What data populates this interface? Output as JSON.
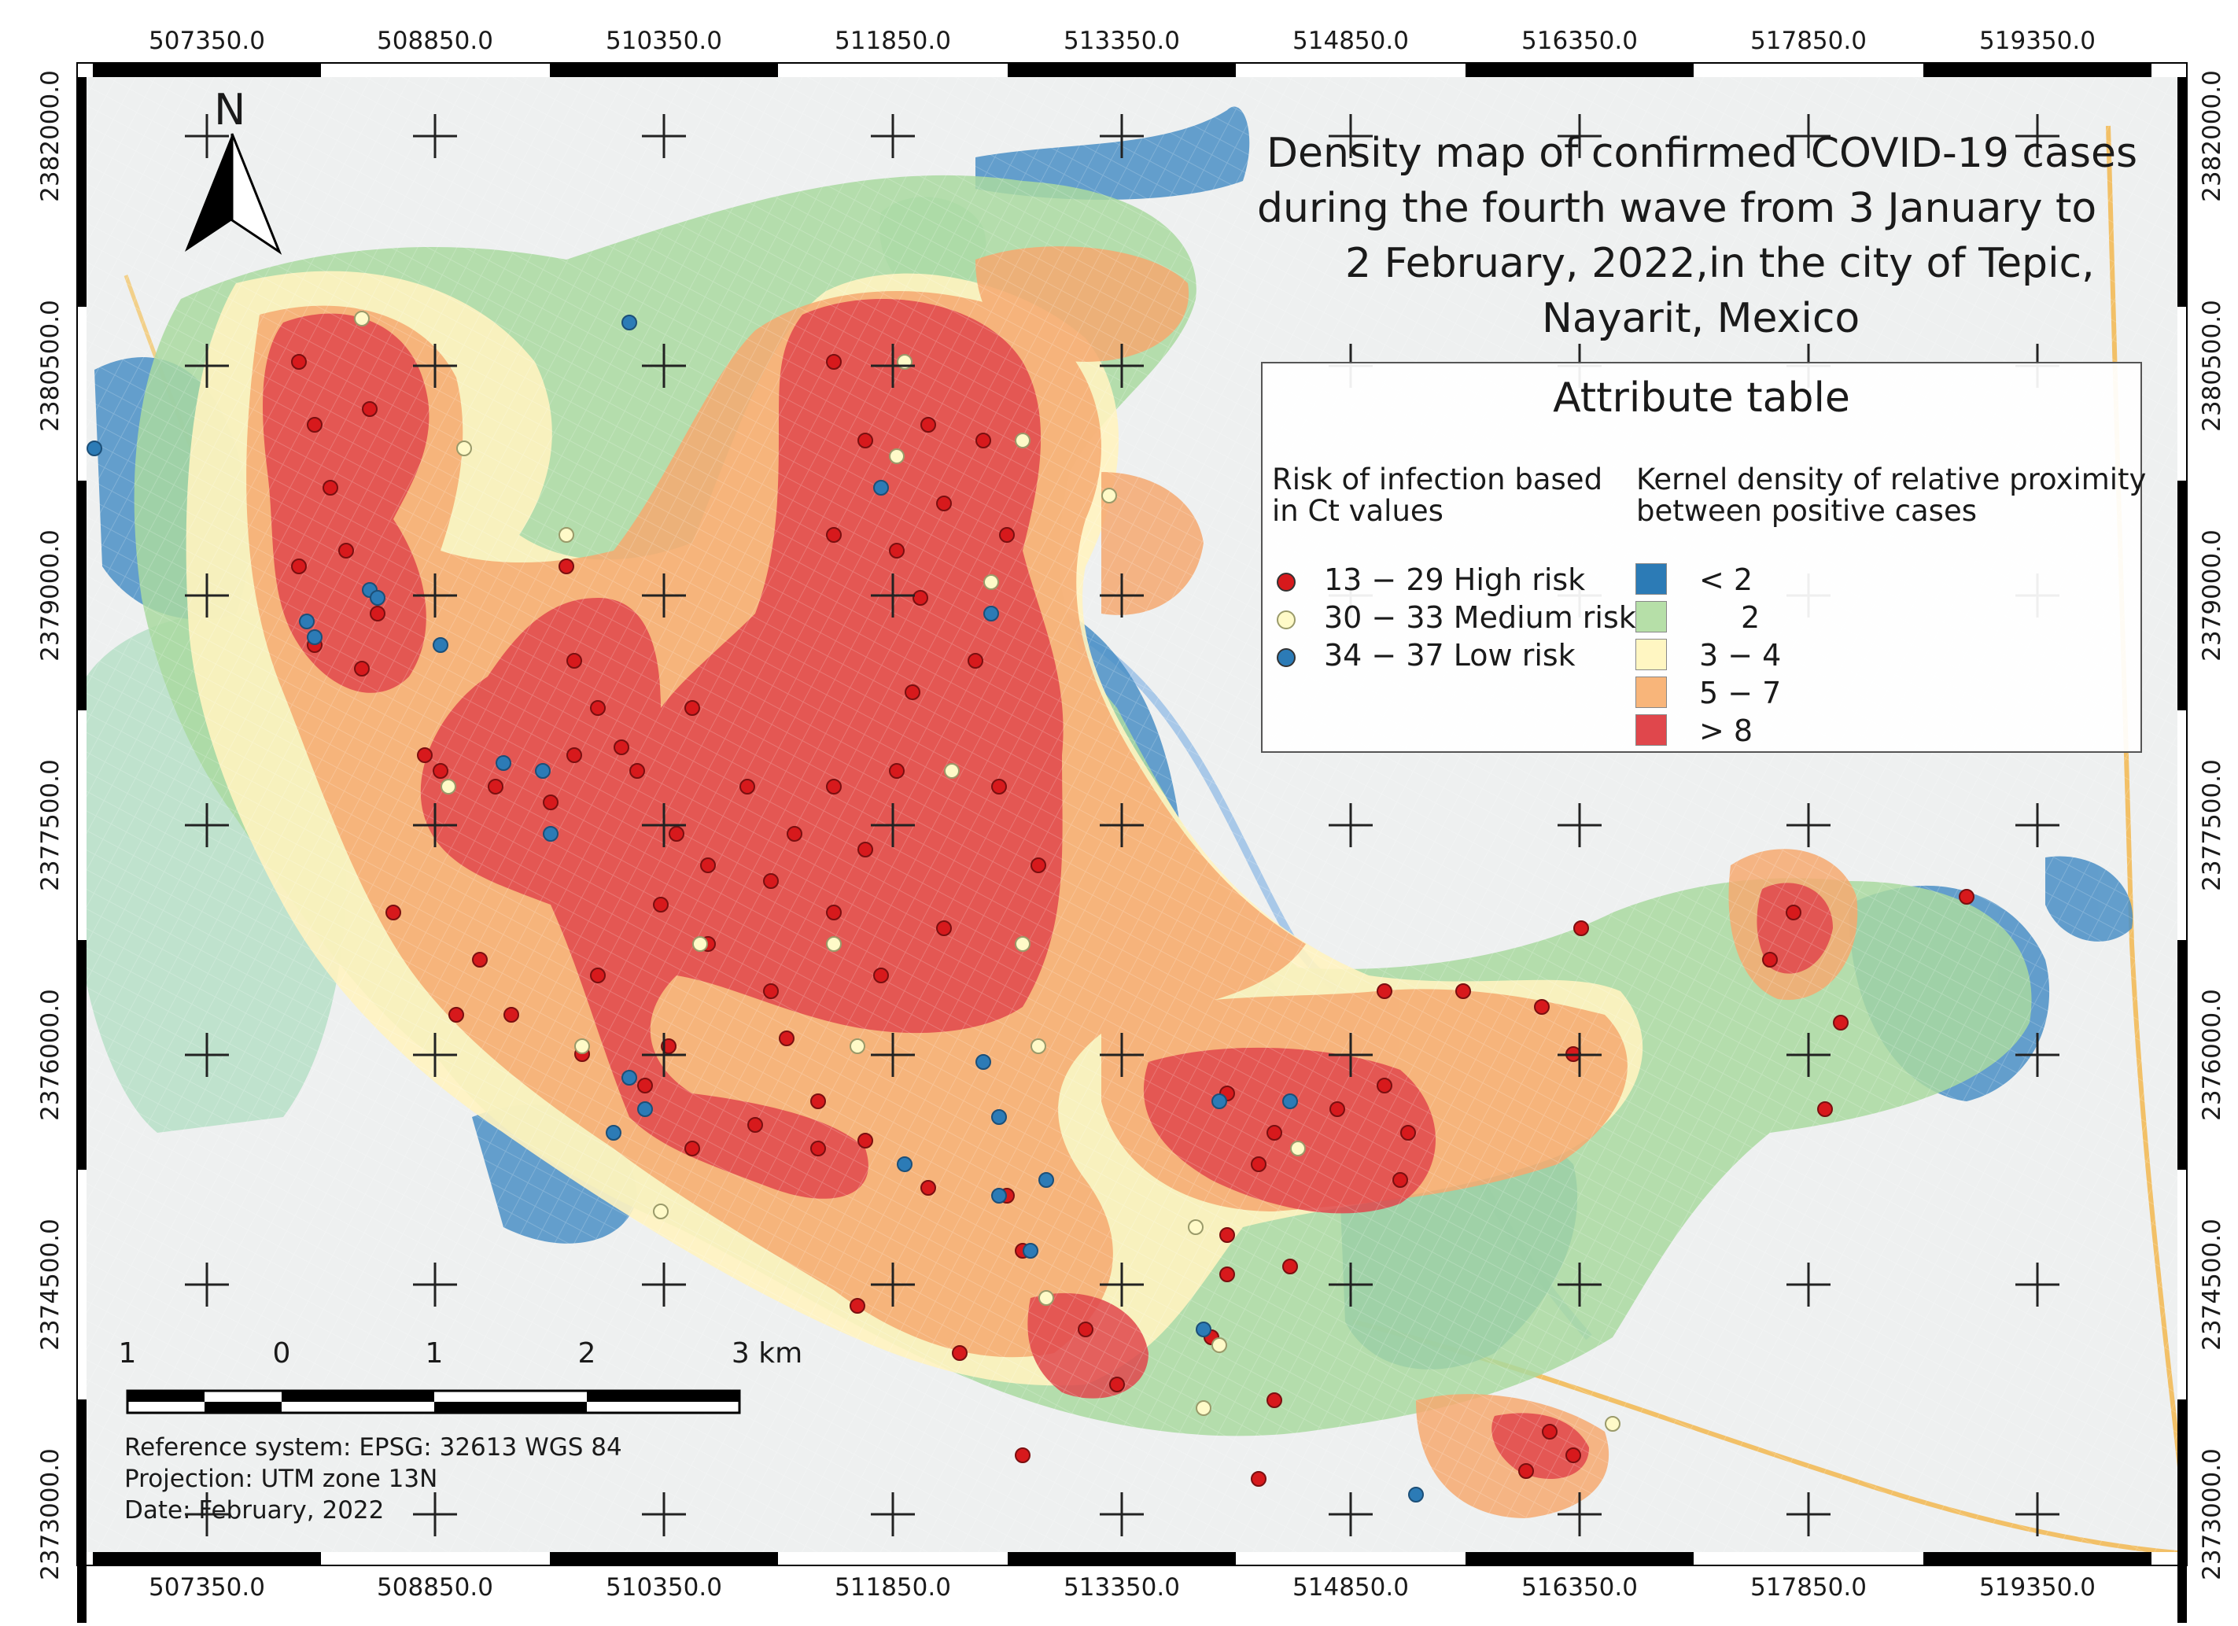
{
  "title": {
    "lines": [
      "Density map of confirmed COVID-19 cases",
      "during the fourth wave from  3 January to",
      "2 February,  2022,in the city of Tepic,",
      "Nayarit, Mexico"
    ]
  },
  "north_arrow": {
    "label": "N"
  },
  "grid": {
    "x_labels": [
      "507350.0",
      "508850.0",
      "510350.0",
      "511850.0",
      "513350.0",
      "514850.0",
      "516350.0",
      "517850.0",
      "519350.0"
    ],
    "y_labels": [
      "2382000.0",
      "2380500.0",
      "2379000.0",
      "2377500.0",
      "2376000.0",
      "2374500.0",
      "2373000.0"
    ]
  },
  "legend": {
    "title": "Attribute table",
    "points_heading": [
      "Risk of infection based",
      "in Ct values"
    ],
    "density_heading": [
      "Kernel density of relative proximity",
      "between positive cases"
    ],
    "points": [
      {
        "label": "13 − 29 High risk",
        "color": "#d7191c"
      },
      {
        "label": "30 − 33 Medium risk",
        "color": "#fffac8"
      },
      {
        "label": "34 − 37 Low risk",
        "color": "#2c7bb6"
      }
    ],
    "density": [
      {
        "label": "<  2",
        "color": "#2c7bb6"
      },
      {
        "label": "2",
        "color": "#b6dfa8"
      },
      {
        "label": "3 − 4",
        "color": "#fff6c2"
      },
      {
        "label": "5 − 7",
        "color": "#f8b57a"
      },
      {
        "label": ">  8",
        "color": "#e0474c"
      }
    ]
  },
  "scale_bar": {
    "labels": [
      "1",
      "0",
      "1",
      "2",
      "3 km"
    ]
  },
  "info": [
    "Reference system: EPSG: 32613 WGS 84",
    "Projection: UTM zone 13N",
    "Date: February, 2022"
  ]
}
